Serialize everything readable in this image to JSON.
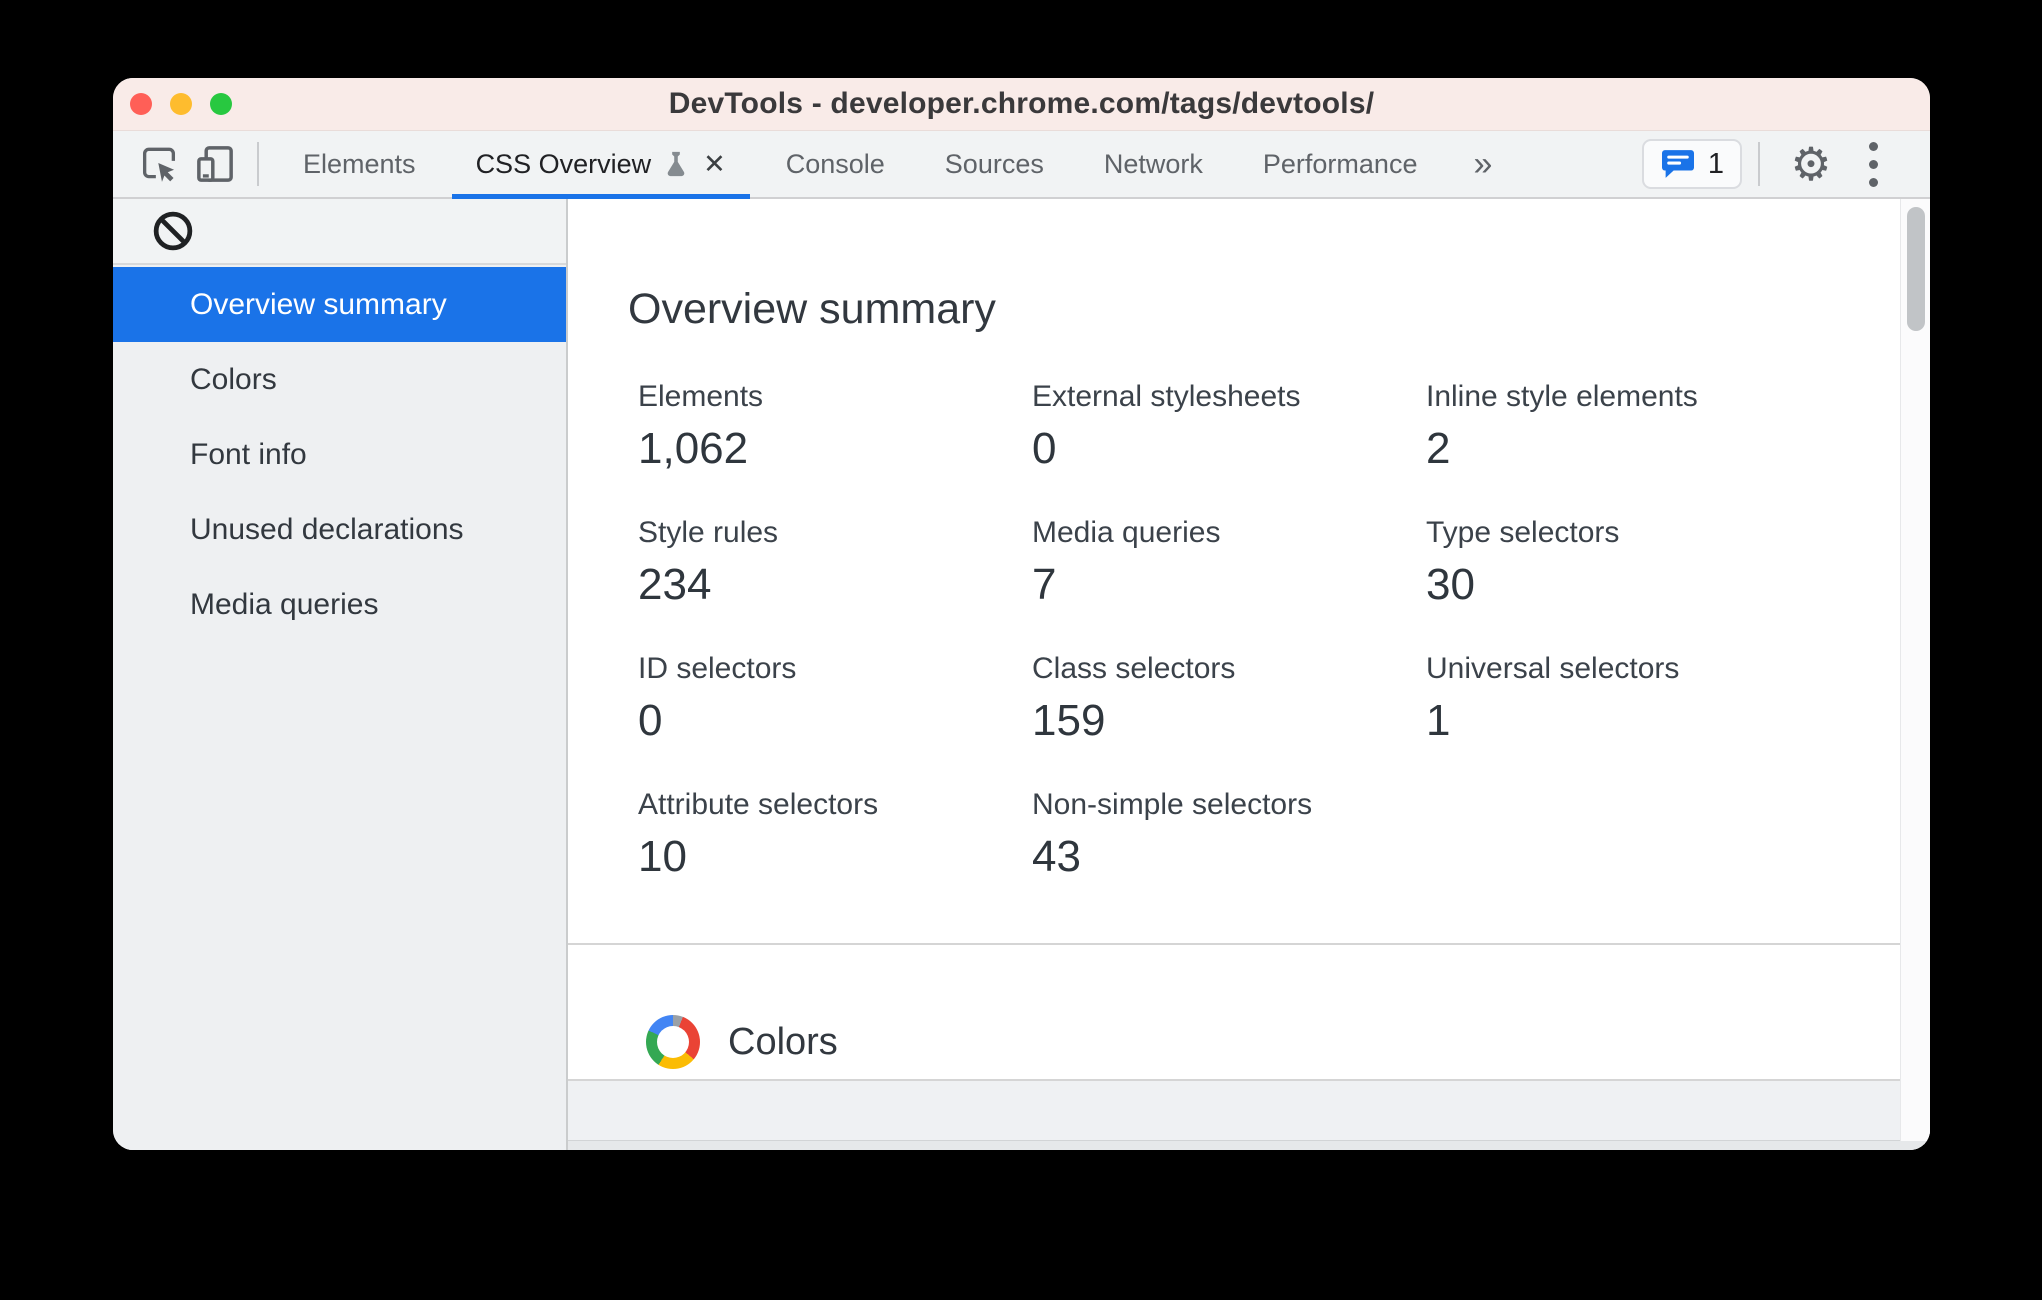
{
  "window": {
    "title": "DevTools - developer.chrome.com/tags/devtools/"
  },
  "toolbar": {
    "tabs": [
      {
        "label": "Elements",
        "active": false,
        "experimental": false,
        "closable": false
      },
      {
        "label": "CSS Overview",
        "active": true,
        "experimental": true,
        "closable": true
      },
      {
        "label": "Console",
        "active": false,
        "experimental": false,
        "closable": false
      },
      {
        "label": "Sources",
        "active": false,
        "experimental": false,
        "closable": false
      },
      {
        "label": "Network",
        "active": false,
        "experimental": false,
        "closable": false
      },
      {
        "label": "Performance",
        "active": false,
        "experimental": false,
        "closable": false
      }
    ],
    "close_glyph": "✕",
    "more_tabs_glyph": "»",
    "gear_glyph": "⚙",
    "issues_count": "1"
  },
  "sidebar": {
    "items": [
      {
        "label": "Overview summary",
        "selected": true
      },
      {
        "label": "Colors",
        "selected": false
      },
      {
        "label": "Font info",
        "selected": false
      },
      {
        "label": "Unused declarations",
        "selected": false
      },
      {
        "label": "Media queries",
        "selected": false
      }
    ]
  },
  "main": {
    "heading": "Overview summary",
    "stats": [
      {
        "label": "Elements",
        "value": "1,062"
      },
      {
        "label": "External stylesheets",
        "value": "0"
      },
      {
        "label": "Inline style elements",
        "value": "2"
      },
      {
        "label": "Style rules",
        "value": "234"
      },
      {
        "label": "Media queries",
        "value": "7"
      },
      {
        "label": "Type selectors",
        "value": "30"
      },
      {
        "label": "ID selectors",
        "value": "0"
      },
      {
        "label": "Class selectors",
        "value": "159"
      },
      {
        "label": "Universal selectors",
        "value": "1"
      },
      {
        "label": "Attribute selectors",
        "value": "10"
      },
      {
        "label": "Non-simple selectors",
        "value": "43"
      }
    ],
    "colors_section_title": "Colors"
  },
  "colors": {
    "accent_blue": "#1a73e8",
    "titlebar_bg": "#f9ebe8",
    "toolbar_bg": "#f1f3f4",
    "sidebar_bg": "#eef0f2",
    "selected_text": "#ffffff",
    "text_dark": "#32383f",
    "icon_gray": "#5f6368",
    "traffic_red": "#ff5f57",
    "traffic_yellow": "#febc2e",
    "traffic_green": "#28c840",
    "wheel_red": "#ea4335",
    "wheel_yellow": "#fbbc04",
    "wheel_green": "#34a853",
    "wheel_blue": "#4285f4"
  }
}
